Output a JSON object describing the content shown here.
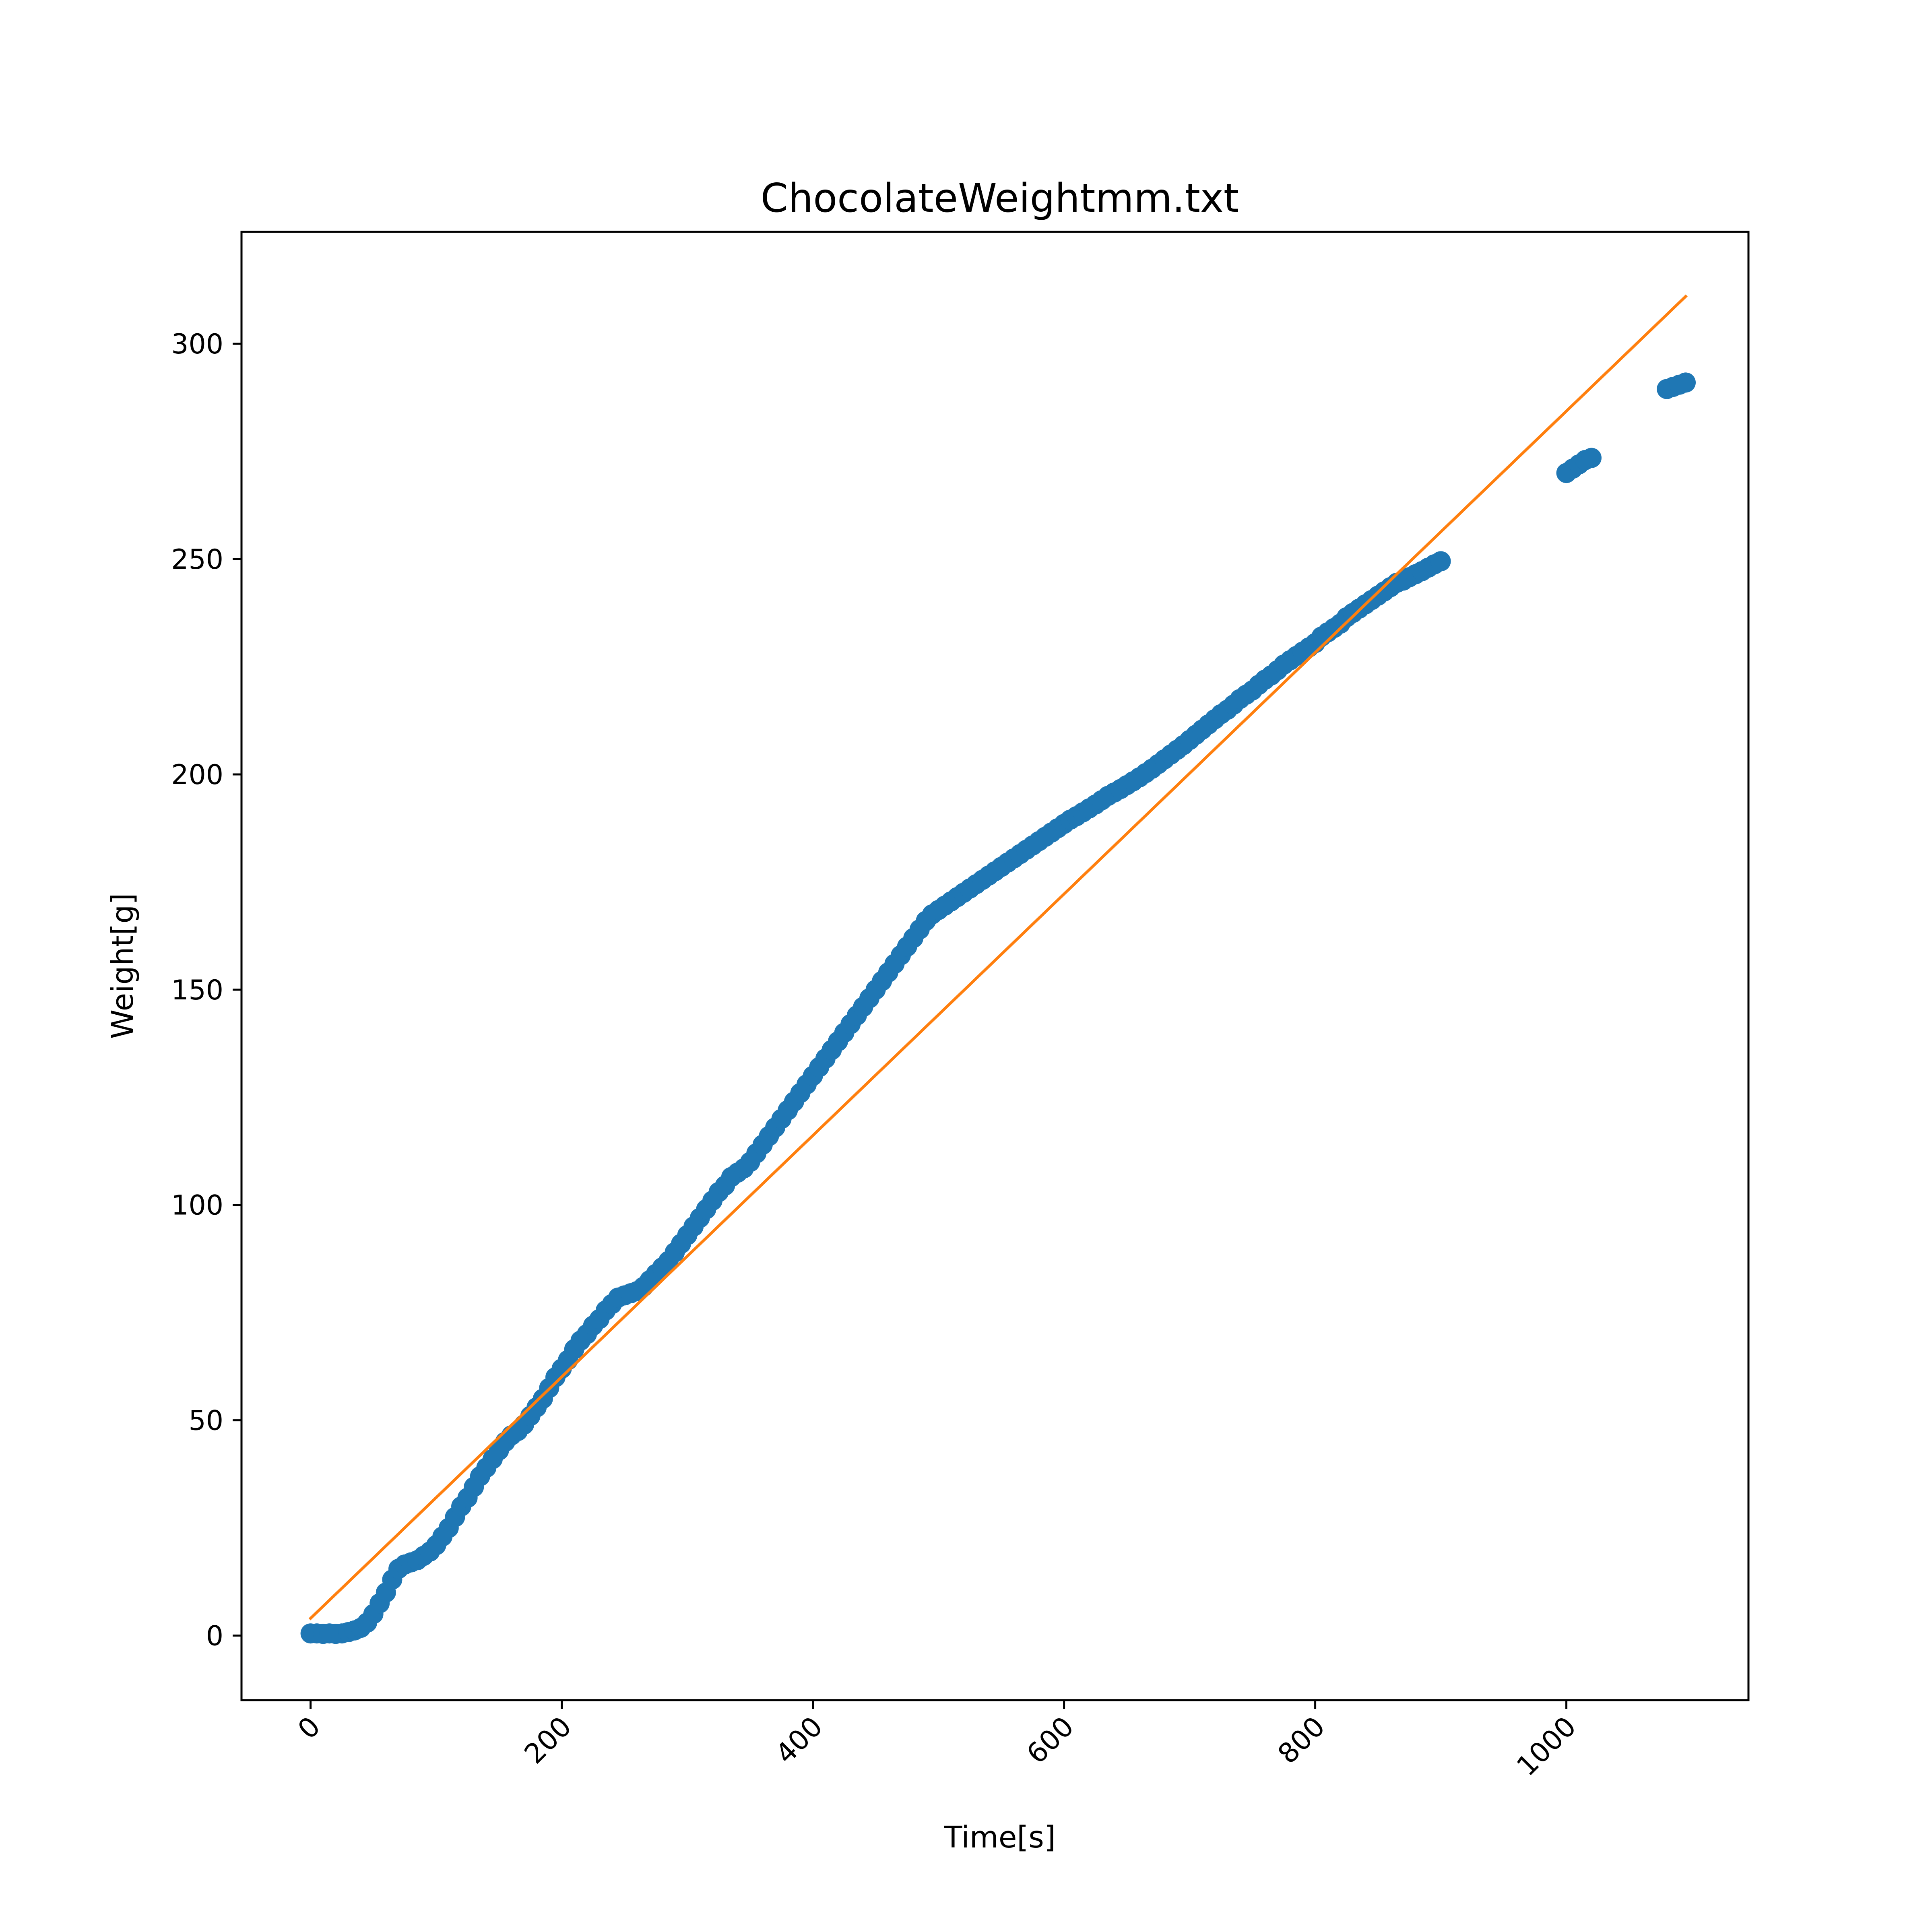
{
  "chart_data": {
    "type": "scatter",
    "title": "ChocolateWeightmm.txt",
    "xlabel": "Time[s]",
    "ylabel": "Weight[g]",
    "xlim": [
      -55,
      1145
    ],
    "ylim": [
      -15,
      326
    ],
    "xticks": [
      0,
      200,
      400,
      600,
      800,
      1000
    ],
    "yticks": [
      0,
      50,
      100,
      150,
      200,
      250,
      300
    ],
    "xtick_rotation": 45,
    "grid": false,
    "legend": "none",
    "colors": {
      "points": "#1f77b4",
      "fit_line": "#ff7f0e"
    },
    "series": [
      {
        "kind": "scatter",
        "marker": "circle",
        "points": [
          [
            0,
            0.5
          ],
          [
            5,
            0.5
          ],
          [
            10,
            0.4
          ],
          [
            15,
            0.5
          ],
          [
            20,
            0.4
          ],
          [
            25,
            0.5
          ],
          [
            30,
            0.8
          ],
          [
            35,
            1.2
          ],
          [
            40,
            1.8
          ],
          [
            45,
            3
          ],
          [
            50,
            5
          ],
          [
            55,
            7.5
          ],
          [
            60,
            10
          ],
          [
            65,
            13
          ],
          [
            70,
            15.5
          ],
          [
            75,
            16.5
          ],
          [
            80,
            17
          ],
          [
            85,
            17.5
          ],
          [
            90,
            18.5
          ],
          [
            95,
            19.5
          ],
          [
            100,
            21
          ],
          [
            105,
            23
          ],
          [
            110,
            25
          ],
          [
            115,
            27.5
          ],
          [
            120,
            30
          ],
          [
            125,
            32
          ],
          [
            130,
            34.5
          ],
          [
            135,
            37
          ],
          [
            140,
            39
          ],
          [
            145,
            41
          ],
          [
            150,
            43
          ],
          [
            155,
            45
          ],
          [
            160,
            46.5
          ],
          [
            165,
            47.5
          ],
          [
            170,
            49
          ],
          [
            175,
            51
          ],
          [
            180,
            53
          ],
          [
            185,
            55
          ],
          [
            190,
            57.5
          ],
          [
            195,
            60
          ],
          [
            200,
            62
          ],
          [
            205,
            64
          ],
          [
            210,
            66.5
          ],
          [
            215,
            68.5
          ],
          [
            220,
            70
          ],
          [
            225,
            72
          ],
          [
            230,
            73.5
          ],
          [
            235,
            75.5
          ],
          [
            240,
            77
          ],
          [
            245,
            78.5
          ],
          [
            250,
            79
          ],
          [
            255,
            79.5
          ],
          [
            260,
            80
          ],
          [
            265,
            81
          ],
          [
            270,
            82.5
          ],
          [
            275,
            84
          ],
          [
            280,
            85.5
          ],
          [
            285,
            87
          ],
          [
            290,
            89
          ],
          [
            295,
            91
          ],
          [
            300,
            93
          ],
          [
            305,
            95
          ],
          [
            310,
            97
          ],
          [
            315,
            99
          ],
          [
            320,
            101
          ],
          [
            325,
            103
          ],
          [
            330,
            104.5
          ],
          [
            335,
            106.5
          ],
          [
            340,
            107.5
          ],
          [
            345,
            108.5
          ],
          [
            350,
            110
          ],
          [
            355,
            112
          ],
          [
            360,
            114
          ],
          [
            365,
            116
          ],
          [
            370,
            118
          ],
          [
            375,
            120
          ],
          [
            380,
            122
          ],
          [
            385,
            124
          ],
          [
            390,
            126
          ],
          [
            395,
            128
          ],
          [
            400,
            130
          ],
          [
            405,
            132
          ],
          [
            410,
            134
          ],
          [
            415,
            136
          ],
          [
            420,
            138
          ],
          [
            425,
            140
          ],
          [
            430,
            142
          ],
          [
            435,
            144
          ],
          [
            440,
            146
          ],
          [
            445,
            148
          ],
          [
            450,
            150
          ],
          [
            455,
            152
          ],
          [
            460,
            154
          ],
          [
            465,
            156
          ],
          [
            470,
            158
          ],
          [
            475,
            160
          ],
          [
            480,
            162
          ],
          [
            485,
            164
          ],
          [
            490,
            166
          ],
          [
            495,
            167.5
          ],
          [
            500,
            168.5
          ],
          [
            505,
            169.5
          ],
          [
            510,
            170.5
          ],
          [
            515,
            171.5
          ],
          [
            520,
            172.5
          ],
          [
            525,
            173.5
          ],
          [
            530,
            174.5
          ],
          [
            535,
            175.5
          ],
          [
            540,
            176.5
          ],
          [
            545,
            177.5
          ],
          [
            550,
            178.5
          ],
          [
            555,
            179.5
          ],
          [
            560,
            180.5
          ],
          [
            565,
            181.5
          ],
          [
            570,
            182.5
          ],
          [
            575,
            183.5
          ],
          [
            580,
            184.5
          ],
          [
            585,
            185.5
          ],
          [
            590,
            186.5
          ],
          [
            595,
            187.5
          ],
          [
            600,
            188.5
          ],
          [
            605,
            189.5
          ],
          [
            610,
            190.3
          ],
          [
            615,
            191.2
          ],
          [
            620,
            192.1
          ],
          [
            625,
            193
          ],
          [
            630,
            194
          ],
          [
            635,
            195
          ],
          [
            640,
            195.8
          ],
          [
            645,
            196.6
          ],
          [
            650,
            197.5
          ],
          [
            655,
            198.4
          ],
          [
            660,
            199.3
          ],
          [
            665,
            200.3
          ],
          [
            670,
            201.3
          ],
          [
            675,
            202.4
          ],
          [
            680,
            203.5
          ],
          [
            685,
            204.6
          ],
          [
            690,
            205.7
          ],
          [
            695,
            206.8
          ],
          [
            700,
            208
          ],
          [
            705,
            209.2
          ],
          [
            710,
            210.4
          ],
          [
            715,
            211.6
          ],
          [
            720,
            212.8
          ],
          [
            725,
            214
          ],
          [
            730,
            215
          ],
          [
            735,
            216.2
          ],
          [
            740,
            217.5
          ],
          [
            745,
            218.5
          ],
          [
            750,
            219.5
          ],
          [
            755,
            220.8
          ],
          [
            760,
            222
          ],
          [
            765,
            223
          ],
          [
            770,
            224.2
          ],
          [
            775,
            225.5
          ],
          [
            780,
            226.5
          ],
          [
            785,
            227.5
          ],
          [
            790,
            228.5
          ],
          [
            795,
            229.5
          ],
          [
            800,
            230.5
          ],
          [
            805,
            232
          ],
          [
            810,
            233
          ],
          [
            815,
            234
          ],
          [
            820,
            235
          ],
          [
            825,
            236.5
          ],
          [
            830,
            237.5
          ],
          [
            835,
            238.5
          ],
          [
            840,
            239.5
          ],
          [
            845,
            240.5
          ],
          [
            850,
            241.5
          ],
          [
            855,
            242.5
          ],
          [
            860,
            243.5
          ],
          [
            865,
            244.5
          ],
          [
            870,
            245
          ],
          [
            875,
            245.8
          ],
          [
            880,
            246.5
          ],
          [
            885,
            247.2
          ],
          [
            890,
            248
          ],
          [
            895,
            248.8
          ],
          [
            900,
            249.5
          ],
          [
            1000,
            270
          ],
          [
            1005,
            271
          ],
          [
            1010,
            272
          ],
          [
            1015,
            273
          ],
          [
            1020,
            273.5
          ],
          [
            1080,
            289.5
          ],
          [
            1085,
            290
          ],
          [
            1090,
            290.5
          ],
          [
            1095,
            291
          ]
        ]
      },
      {
        "kind": "line",
        "points": [
          [
            0,
            4
          ],
          [
            1095,
            311
          ]
        ]
      }
    ]
  }
}
